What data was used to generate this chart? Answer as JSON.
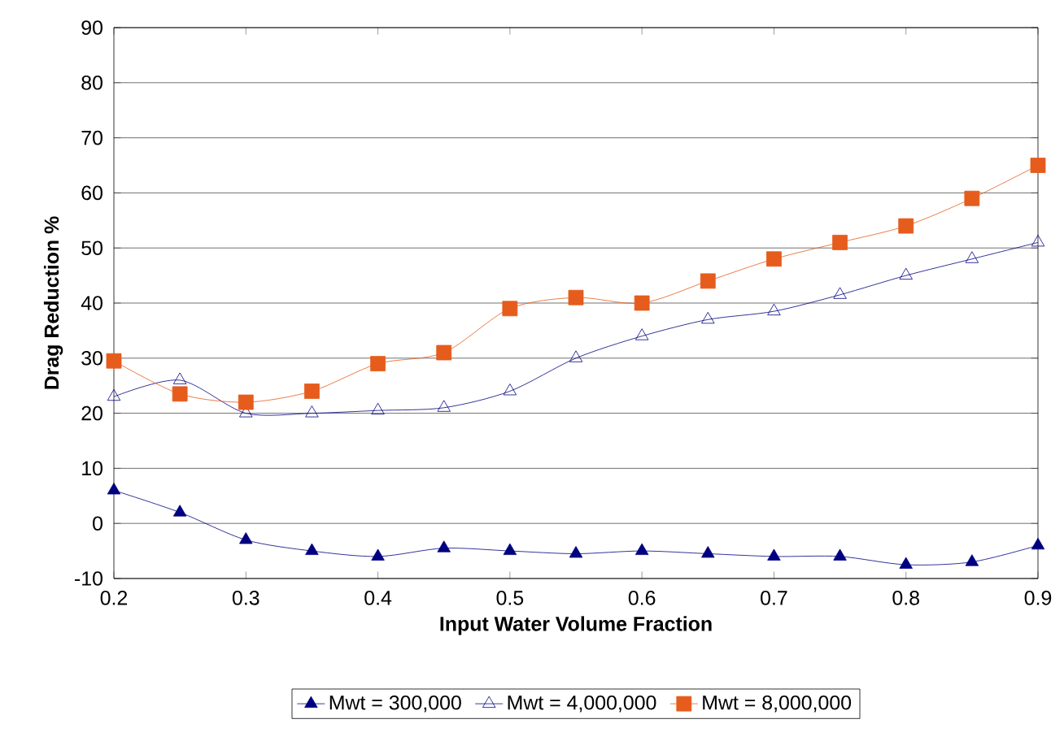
{
  "chart_data": {
    "type": "line",
    "xlabel": "Input Water Volume Fraction",
    "ylabel": "Drag Reduction %",
    "x": [
      0.2,
      0.25,
      0.3,
      0.35,
      0.4,
      0.45,
      0.5,
      0.55,
      0.6,
      0.65,
      0.7,
      0.75,
      0.8,
      0.85,
      0.9
    ],
    "series": [
      {
        "name": "Mwt = 300,000",
        "color": "#000080",
        "marker": "triangle",
        "values": [
          6,
          2,
          -3,
          -5,
          -6,
          -4.5,
          -5,
          -5.5,
          -5,
          -5.5,
          -6,
          -6,
          -7.5,
          -7,
          -4
        ]
      },
      {
        "name": "Mwt = 4,000,000",
        "color": "#000080",
        "marker": "triangle",
        "values": [
          23,
          26,
          20,
          20,
          20.5,
          21,
          24,
          30,
          34,
          37,
          38.5,
          41.5,
          45,
          48,
          51
        ]
      },
      {
        "name": "Mwt = 8,000,000",
        "color": "#e65c1c",
        "marker": "square",
        "values": [
          29.5,
          23.5,
          22,
          24,
          29,
          31,
          39,
          41,
          40,
          44,
          48,
          51,
          54,
          59,
          65
        ]
      }
    ],
    "xlim": [
      0.2,
      0.9
    ],
    "xticks": [
      0.2,
      0.3,
      0.4,
      0.5,
      0.6,
      0.7,
      0.8,
      0.9
    ],
    "ylim": [
      -10,
      90
    ],
    "yticks": [
      -10,
      0,
      10,
      20,
      30,
      40,
      50,
      60,
      70,
      80,
      90
    ],
    "grid": "y",
    "legend": "bottom",
    "line_style": "solid"
  }
}
